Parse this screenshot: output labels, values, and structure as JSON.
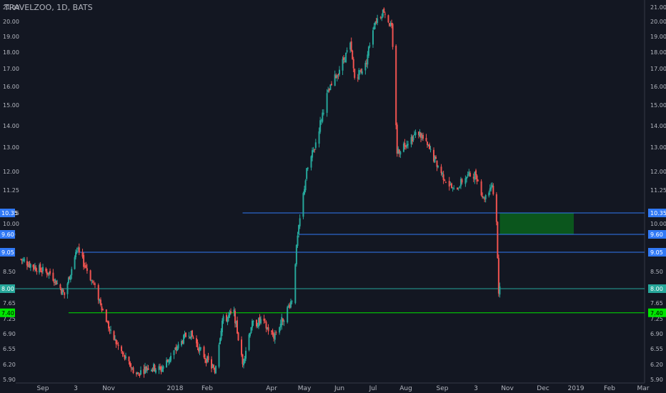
{
  "chart_data": {
    "type": "candlestick",
    "title": "TRAVELZOO, 1D, BATS",
    "y_ticks": [
      5.9,
      6.2,
      6.55,
      6.9,
      7.25,
      7.65,
      8.0,
      8.5,
      9.05,
      9.6,
      10.0,
      10.35,
      11.25,
      12.0,
      13.0,
      14.0,
      15.0,
      16.0,
      17.0,
      18.0,
      19.0,
      20.0,
      21.0
    ],
    "x_ticks": [
      {
        "label": "Sep",
        "date": "2017-09-01"
      },
      {
        "label": "3",
        "date": "2017-10-03"
      },
      {
        "label": "Nov",
        "date": "2017-11-01"
      },
      {
        "label": "2018",
        "date": "2018-01-02"
      },
      {
        "label": "Feb",
        "date": "2018-02-01"
      },
      {
        "label": "Apr",
        "date": "2018-04-02"
      },
      {
        "label": "May",
        "date": "2018-05-01"
      },
      {
        "label": "Jun",
        "date": "2018-06-01"
      },
      {
        "label": "Jul",
        "date": "2018-07-02"
      },
      {
        "label": "Aug",
        "date": "2018-08-01"
      },
      {
        "label": "Sep",
        "date": "2018-09-04"
      },
      {
        "label": "3",
        "date": "2018-10-03"
      },
      {
        "label": "Nov",
        "date": "2018-11-01"
      },
      {
        "label": "Dec",
        "date": "2018-12-03"
      },
      {
        "label": "2019",
        "date": "2019-01-02"
      },
      {
        "label": "Feb",
        "date": "2019-02-01"
      },
      {
        "label": "Mar",
        "date": "2019-03-01"
      }
    ],
    "price_path": [
      {
        "date": "2017-08-07",
        "close": 8.85
      },
      {
        "date": "2017-08-25",
        "close": 8.6
      },
      {
        "date": "2017-09-08",
        "close": 8.45
      },
      {
        "date": "2017-09-22",
        "close": 7.85
      },
      {
        "date": "2017-10-02",
        "close": 8.9
      },
      {
        "date": "2017-10-05",
        "close": 9.05
      },
      {
        "date": "2017-10-13",
        "close": 8.55
      },
      {
        "date": "2017-10-25",
        "close": 7.65
      },
      {
        "date": "2017-11-03",
        "close": 6.9
      },
      {
        "date": "2017-11-17",
        "close": 6.3
      },
      {
        "date": "2017-11-27",
        "close": 6.0
      },
      {
        "date": "2017-12-08",
        "close": 6.15
      },
      {
        "date": "2017-12-20",
        "close": 6.1
      },
      {
        "date": "2018-01-05",
        "close": 6.6
      },
      {
        "date": "2018-01-15",
        "close": 6.95
      },
      {
        "date": "2018-01-26",
        "close": 6.5
      },
      {
        "date": "2018-02-08",
        "close": 6.05
      },
      {
        "date": "2018-02-15",
        "close": 7.2
      },
      {
        "date": "2018-02-26",
        "close": 7.4
      },
      {
        "date": "2018-03-06",
        "close": 6.2
      },
      {
        "date": "2018-03-14",
        "close": 7.1
      },
      {
        "date": "2018-03-23",
        "close": 7.2
      },
      {
        "date": "2018-04-04",
        "close": 6.85
      },
      {
        "date": "2018-04-13",
        "close": 7.3
      },
      {
        "date": "2018-04-20",
        "close": 7.75
      },
      {
        "date": "2018-04-25",
        "close": 9.5
      },
      {
        "date": "2018-05-03",
        "close": 12.0
      },
      {
        "date": "2018-05-10",
        "close": 13.0
      },
      {
        "date": "2018-05-21",
        "close": 15.5
      },
      {
        "date": "2018-06-01",
        "close": 17.0
      },
      {
        "date": "2018-06-11",
        "close": 18.4
      },
      {
        "date": "2018-06-15",
        "close": 16.5
      },
      {
        "date": "2018-06-25",
        "close": 17.2
      },
      {
        "date": "2018-07-03",
        "close": 19.9
      },
      {
        "date": "2018-07-12",
        "close": 20.8
      },
      {
        "date": "2018-07-19",
        "close": 19.5
      },
      {
        "date": "2018-07-24",
        "close": 12.8
      },
      {
        "date": "2018-08-03",
        "close": 13.3
      },
      {
        "date": "2018-08-13",
        "close": 13.7
      },
      {
        "date": "2018-08-24",
        "close": 12.8
      },
      {
        "date": "2018-09-05",
        "close": 11.8
      },
      {
        "date": "2018-09-14",
        "close": 11.2
      },
      {
        "date": "2018-09-24",
        "close": 11.8
      },
      {
        "date": "2018-10-03",
        "close": 11.9
      },
      {
        "date": "2018-10-10",
        "close": 10.9
      },
      {
        "date": "2018-10-18",
        "close": 11.5
      },
      {
        "date": "2018-10-22",
        "close": 10.05
      },
      {
        "date": "2018-10-24",
        "close": 7.9
      },
      {
        "date": "2018-10-25",
        "close": 8.0
      }
    ],
    "horizontal_lines": [
      {
        "value": 10.35,
        "label": "10.35",
        "color": "#3179f5",
        "start_date": "2018-03-06"
      },
      {
        "value": 9.6,
        "label": "9.60",
        "color": "#3179f5",
        "start_date": "2018-04-26"
      },
      {
        "value": 9.05,
        "label": "9.05",
        "color": "#3179f5",
        "start_date": "2017-10-03"
      },
      {
        "value": 8.0,
        "label": "8.00",
        "color": "#26a69a",
        "start_date": "2017-08-01"
      },
      {
        "value": 7.4,
        "label": "7.40",
        "color": "#00e600",
        "start_date": "2017-09-26"
      }
    ],
    "zone": {
      "top": 10.35,
      "bottom": 9.6,
      "start_date": "2018-10-25",
      "end_date": "2018-12-31",
      "color": "#0b5a1e"
    },
    "colors": {
      "up": "#26a69a",
      "down": "#ef5350",
      "background": "#131722",
      "text": "#b2b5be"
    }
  }
}
